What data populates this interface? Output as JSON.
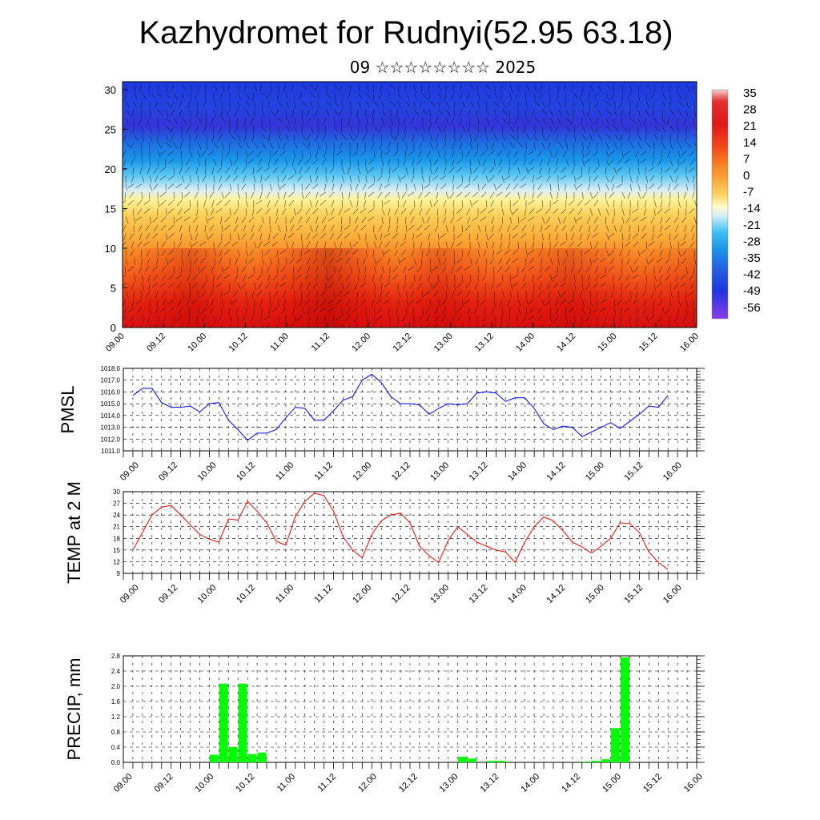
{
  "title": "Kazhydromet for Rudnyi(52.95 63.18)",
  "subtitle": "09 ☆☆☆☆☆☆☆☆ 2025",
  "colors": {
    "pmsl_line": "#0000ff",
    "temp_line": "#ff0000",
    "precip_bar": "#00ff00",
    "grid": "#000000"
  },
  "chart_data": [
    {
      "type": "heatmap",
      "title": "",
      "y_ticks": [
        0,
        5,
        10,
        15,
        20,
        25,
        30
      ],
      "ylim": [
        0,
        31
      ],
      "x_ticks": [
        "09.00",
        "09.12",
        "10.00",
        "10.12",
        "11.00",
        "11.12",
        "12.00",
        "12.12",
        "13.00",
        "13.12",
        "14.00",
        "14.12",
        "15.00",
        "15.12",
        "16.00"
      ],
      "colorbar_labels": [
        "35",
        "28",
        "21",
        "14",
        "7",
        "0",
        "-7",
        "-14",
        "-21",
        "-28",
        "-35",
        "-42",
        "-49",
        "-56"
      ],
      "colorbar_colors": [
        "#f4c8c8",
        "#e8555a",
        "#e21a1a",
        "#f0491b",
        "#f57b22",
        "#faa83a",
        "#fdd466",
        "#fffdc4",
        "#c7e8f8",
        "#39bff2",
        "#1c8ee6",
        "#2463e0",
        "#2035e0",
        "#4a17e0",
        "#8a3ce8"
      ]
    },
    {
      "type": "line",
      "ylabel": "PMSL",
      "y_ticks": [
        "1011.0",
        "1012.0",
        "1013.0",
        "1014.0",
        "1015.0",
        "1016.0",
        "1017.0",
        "1018.0"
      ],
      "ylim": [
        1011,
        1018
      ],
      "x_ticks": [
        "09.00",
        "09.12",
        "10.00",
        "10.12",
        "11.00",
        "11.12",
        "12.00",
        "12.12",
        "13.00",
        "13.12",
        "14.00",
        "14.12",
        "15.00",
        "15.12",
        "16.00"
      ],
      "grid": true,
      "values": [
        1015.7,
        1016.3,
        1016.3,
        1015.1,
        1014.7,
        1014.7,
        1014.8,
        1014.3,
        1015.0,
        1015.1,
        1013.6,
        1012.8,
        1011.9,
        1012.5,
        1012.5,
        1012.8,
        1013.8,
        1014.7,
        1014.6,
        1013.6,
        1013.6,
        1014.4,
        1015.3,
        1015.6,
        1017.0,
        1017.5,
        1016.8,
        1015.6,
        1015.0,
        1015.0,
        1014.9,
        1014.1,
        1014.6,
        1015.0,
        1014.9,
        1015.0,
        1015.9,
        1016.0,
        1015.9,
        1015.2,
        1015.5,
        1015.5,
        1014.6,
        1013.3,
        1012.8,
        1013.1,
        1013.0,
        1012.2,
        1012.6,
        1013.0,
        1013.4,
        1012.9,
        1013.5,
        1014.1,
        1014.8,
        1014.7,
        1015.7
      ]
    },
    {
      "type": "line",
      "ylabel": "TEMP at 2 M",
      "y_ticks": [
        "9",
        "12",
        "15",
        "18",
        "21",
        "24",
        "27",
        "30"
      ],
      "ylim": [
        9,
        30
      ],
      "x_ticks": [
        "09.00",
        "09.12",
        "10.00",
        "10.12",
        "11.00",
        "11.12",
        "12.00",
        "12.12",
        "13.00",
        "13.12",
        "14.00",
        "14.12",
        "15.00",
        "15.12",
        "16.00"
      ],
      "grid": true,
      "values": [
        15.0,
        19.5,
        24.0,
        26.0,
        26.5,
        24.0,
        21.5,
        19.0,
        17.8,
        17.0,
        23.0,
        22.7,
        27.5,
        25.0,
        22.0,
        17.3,
        16.2,
        23.6,
        27.5,
        29.6,
        29.0,
        25.0,
        18.4,
        15.0,
        13.0,
        19.0,
        22.5,
        24.0,
        24.5,
        22.0,
        16.0,
        13.5,
        11.8,
        17.5,
        21.0,
        19.0,
        17.0,
        16.0,
        15.0,
        14.5,
        11.8,
        17.0,
        21.0,
        23.5,
        22.5,
        20.0,
        17.0,
        15.8,
        14.2,
        16.0,
        18.0,
        22.0,
        21.8,
        19.5,
        14.5,
        11.8,
        10.0
      ]
    },
    {
      "type": "bar",
      "ylabel": "PRECIP, mm",
      "y_ticks": [
        "0.0",
        "0.4",
        "0.8",
        "1.2",
        "1.6",
        "2.0",
        "2.4",
        "2.8"
      ],
      "ylim": [
        0,
        2.8
      ],
      "x_ticks": [
        "09.00",
        "09.12",
        "10.00",
        "10.12",
        "11.00",
        "11.12",
        "12.00",
        "12.12",
        "13.00",
        "13.12",
        "14.00",
        "14.12",
        "15.00",
        "15.12",
        "16.00"
      ],
      "grid": true,
      "values": [
        0,
        0,
        0,
        0,
        0,
        0,
        0,
        0,
        0,
        0.2,
        2.07,
        0.4,
        2.07,
        0.22,
        0.26,
        0,
        0,
        0,
        0,
        0,
        0,
        0,
        0,
        0,
        0,
        0,
        0,
        0,
        0,
        0,
        0,
        0,
        0,
        0,
        0,
        0.15,
        0.1,
        0,
        0.04,
        0.04,
        0,
        0,
        0,
        0,
        0,
        0,
        0,
        0,
        0.02,
        0.04,
        0.08,
        0.9,
        2.76,
        0,
        0,
        0,
        0
      ]
    }
  ]
}
